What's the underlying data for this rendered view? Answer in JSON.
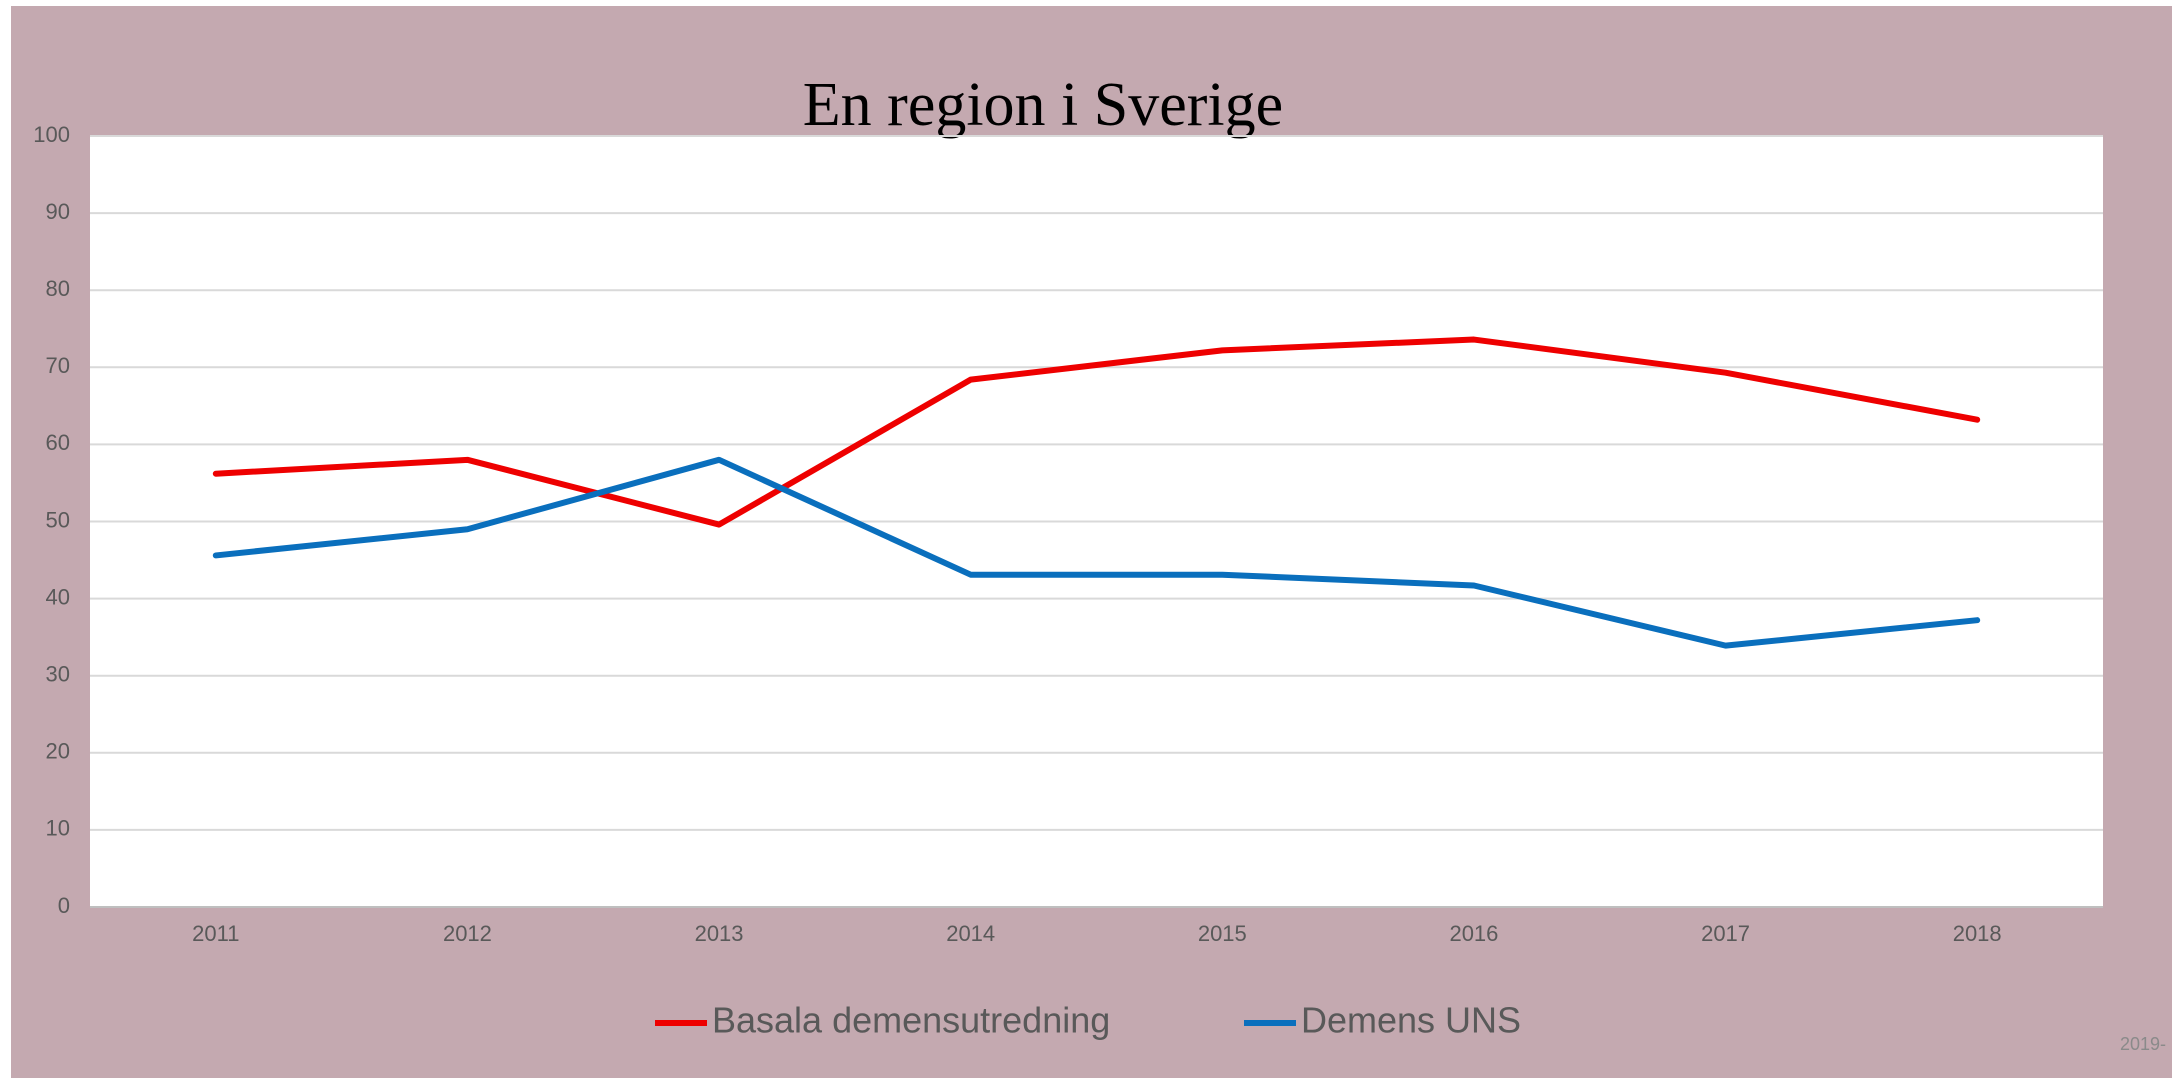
{
  "chart_data": {
    "type": "line",
    "title": "En region i Sverige",
    "categories": [
      "2011",
      "2012",
      "2013",
      "2014",
      "2015",
      "2016",
      "2017",
      "2018"
    ],
    "series": [
      {
        "name": "Basala demensutredning",
        "color": "#ee0000",
        "values": [
          56.2,
          58,
          49.6,
          68.4,
          72.2,
          73.6,
          69.3,
          63.2
        ]
      },
      {
        "name": "Demens UNS",
        "color": "#0a6fbd",
        "values": [
          45.6,
          49,
          58,
          43.1,
          43.1,
          41.7,
          33.9,
          37.2
        ]
      }
    ],
    "ylim": [
      0,
      100
    ],
    "yticks": [
      0,
      10,
      20,
      30,
      40,
      50,
      60,
      70,
      80,
      90,
      100
    ],
    "grid": true,
    "legend": "bottom",
    "footer": "2019-"
  }
}
